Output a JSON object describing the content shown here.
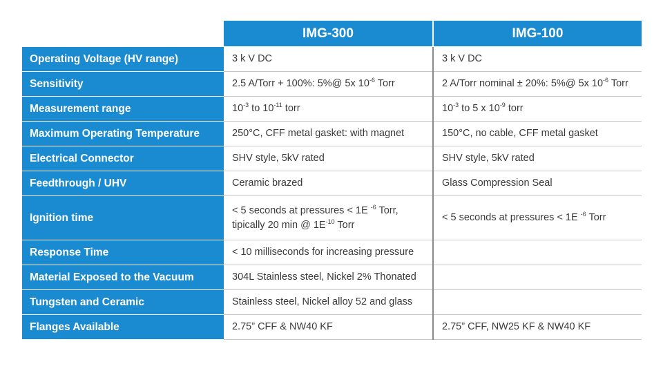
{
  "columns": {
    "a": "IMG-300",
    "b": "IMG-100"
  },
  "rows": [
    {
      "label": "Operating Voltage (HV range)",
      "a": "3 k V DC",
      "b": "3 k V DC"
    },
    {
      "label": "Sensitivity",
      "a": {
        "pre": "2.5 A/Torr + 100%:  5%@ 5x 10",
        "sup": "-6",
        "post": " Torr"
      },
      "b": {
        "pre": "2 A/Torr nominal ± 20%: 5%@ 5x 10",
        "sup": "-6",
        "post": " Torr"
      }
    },
    {
      "label": "Measurement range",
      "a": {
        "p1": "10",
        "s1": "-3",
        "p2": " to 10",
        "s2": "-11",
        "p3": " torr"
      },
      "b": {
        "p1": "10",
        "s1": "-3",
        "p2": " to 5 x 10",
        "s2": "-9",
        "p3": " torr"
      }
    },
    {
      "label": "Maximum Operating Temperature",
      "a": "250°C, CFF metal gasket: with magnet",
      "b": "150°C, no cable, CFF metal gasket"
    },
    {
      "label": "Electrical Connector",
      "a": "SHV style, 5kV rated",
      "b": "SHV style, 5kV rated"
    },
    {
      "label": "Feedthrough / UHV",
      "a": "Ceramic brazed",
      "b": "Glass Compression Seal"
    },
    {
      "label": "Ignition time",
      "a": {
        "line1_pre": "< 5 seconds at pressures < 1E ",
        "line1_sup": "-6",
        "line1_post": " Torr,",
        "line2_pre": "tipically 20 min @ 1E",
        "line2_sup": "-10",
        "line2_post": " Torr"
      },
      "b": {
        "pre": "< 5 seconds at pressures < 1E ",
        "sup": "-6",
        "post": " Torr"
      }
    },
    {
      "label": "Response Time",
      "a": "< 10 milliseconds for increasing pressure",
      "b": ""
    },
    {
      "label": "Material Exposed to the Vacuum",
      "a": "304L Stainless steel, Nickel 2% Thonated",
      "b": ""
    },
    {
      "label": "Tungsten and Ceramic",
      "a": "Stainless steel, Nickel alloy 52 and glass",
      "b": ""
    },
    {
      "label": "Flanges Available",
      "a": "2.75” CFF & NW40 KF",
      "b": "2.75” CFF, NW25 KF & NW40 KF"
    }
  ],
  "colors": {
    "header_blue": "#1a8bd0",
    "text_dark": "#3a3a3a",
    "divider_gray": "#c9c9c9"
  }
}
